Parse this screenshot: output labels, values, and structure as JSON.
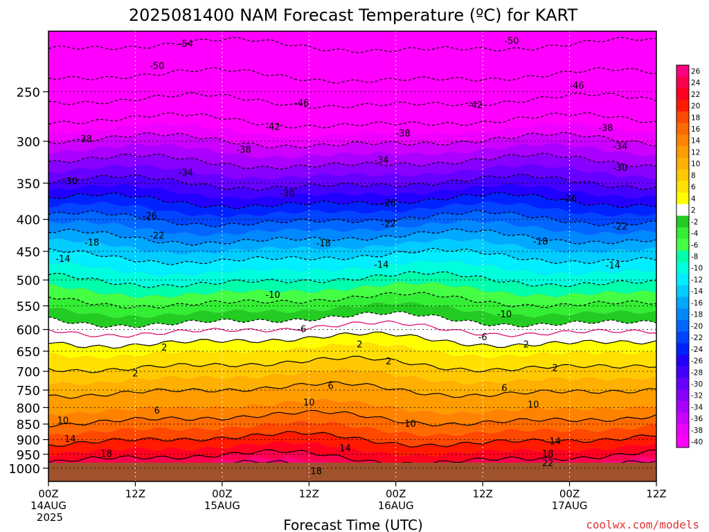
{
  "chart_data": {
    "type": "heatmap",
    "title": "2025081400 NAM Forecast Temperature (ºC) for KART",
    "xlabel": "Forecast Time (UTC)",
    "ylabel": "",
    "credit": "coolwx.com/models",
    "x_ticks": [
      {
        "hour": 0,
        "l1": "00Z",
        "l2": "14AUG",
        "l3": "2025"
      },
      {
        "hour": 12,
        "l1": "12Z",
        "l2": "",
        "l3": ""
      },
      {
        "hour": 24,
        "l1": "00Z",
        "l2": "15AUG",
        "l3": ""
      },
      {
        "hour": 36,
        "l1": "12Z",
        "l2": "",
        "l3": ""
      },
      {
        "hour": 48,
        "l1": "00Z",
        "l2": "16AUG",
        "l3": ""
      },
      {
        "hour": 60,
        "l1": "12Z",
        "l2": "",
        "l3": ""
      },
      {
        "hour": 72,
        "l1": "00Z",
        "l2": "17AUG",
        "l3": ""
      },
      {
        "hour": 84,
        "l1": "12Z",
        "l2": "",
        "l3": ""
      }
    ],
    "xlim": [
      0,
      84
    ],
    "y_ticks": [
      250,
      300,
      350,
      400,
      450,
      500,
      550,
      600,
      650,
      700,
      750,
      800,
      850,
      900,
      950,
      1000
    ],
    "ylim": [
      1050,
      200
    ],
    "y_scale": "log",
    "ground_level_hpa": 980,
    "grid": true,
    "colorbar_labels": [
      "26",
      "24",
      "22",
      "20",
      "18",
      "16",
      "14",
      "12",
      "10",
      "8",
      "6",
      "4",
      "2",
      "-2",
      "-4",
      "-6",
      "-8",
      "-10",
      "-12",
      "-14",
      "-16",
      "-18",
      "-20",
      "-22",
      "-24",
      "-26",
      "-28",
      "-30",
      "-32",
      "-34",
      "-36",
      "-38",
      "-40"
    ],
    "colorbar_colors": [
      "#ff0080",
      "#ff0050",
      "#ff0020",
      "#ff1a00",
      "#ff4800",
      "#ff6a00",
      "#ff8200",
      "#ff9c00",
      "#ffb000",
      "#ffc800",
      "#ffe000",
      "#ffff00",
      "#ffffff",
      "#22cc22",
      "#33ee33",
      "#44ff44",
      "#00ffaa",
      "#00ffdd",
      "#00eeff",
      "#00ccff",
      "#00a8ff",
      "#0088ff",
      "#0066ff",
      "#0044ff",
      "#0022ff",
      "#2200ff",
      "#4400ff",
      "#6600ff",
      "#8800ff",
      "#aa00ff",
      "#cc00ff",
      "#ee00ff",
      "#ff00ff"
    ],
    "ground_color": "#a0522d",
    "temperature_profile": [
      {
        "p": 200,
        "t": -56
      },
      {
        "p": 250,
        "t": -48
      },
      {
        "p": 300,
        "t": -38
      },
      {
        "p": 350,
        "t": -30
      },
      {
        "p": 400,
        "t": -22
      },
      {
        "p": 450,
        "t": -15
      },
      {
        "p": 500,
        "t": -10
      },
      {
        "p": 550,
        "t": -5
      },
      {
        "p": 600,
        "t": 0
      },
      {
        "p": 650,
        "t": 4
      },
      {
        "p": 700,
        "t": 7
      },
      {
        "p": 750,
        "t": 10
      },
      {
        "p": 800,
        "t": 12
      },
      {
        "p": 850,
        "t": 15
      },
      {
        "p": 900,
        "t": 18
      },
      {
        "p": 950,
        "t": 21
      },
      {
        "p": 1000,
        "t": 25
      }
    ],
    "contour_labels": [
      {
        "text": "-54",
        "hour": 19,
        "p": 209
      },
      {
        "text": "-50",
        "hour": 64,
        "p": 207
      },
      {
        "text": "-50",
        "hour": 15,
        "p": 227
      },
      {
        "text": "-46",
        "hour": 35,
        "p": 260
      },
      {
        "text": "-46",
        "hour": 73,
        "p": 244
      },
      {
        "text": "-42",
        "hour": 31,
        "p": 284
      },
      {
        "text": "-42",
        "hour": 59,
        "p": 262
      },
      {
        "text": "-38",
        "hour": 5,
        "p": 297
      },
      {
        "text": "-38",
        "hour": 27,
        "p": 309
      },
      {
        "text": "-38",
        "hour": 49,
        "p": 291
      },
      {
        "text": "-38",
        "hour": 77,
        "p": 285
      },
      {
        "text": "-34",
        "hour": 46,
        "p": 321
      },
      {
        "text": "-34",
        "hour": 79,
        "p": 305
      },
      {
        "text": "-34",
        "hour": 19,
        "p": 336
      },
      {
        "text": "-30",
        "hour": 3,
        "p": 347
      },
      {
        "text": "-30",
        "hour": 33,
        "p": 363
      },
      {
        "text": "-30",
        "hour": 79,
        "p": 330
      },
      {
        "text": "-26",
        "hour": 47,
        "p": 376
      },
      {
        "text": "-26",
        "hour": 72,
        "p": 370
      },
      {
        "text": "-26",
        "hour": 14,
        "p": 394
      },
      {
        "text": "-22",
        "hour": 47,
        "p": 406
      },
      {
        "text": "-22",
        "hour": 79,
        "p": 410
      },
      {
        "text": "-22",
        "hour": 15,
        "p": 424
      },
      {
        "text": "-18",
        "hour": 6,
        "p": 435
      },
      {
        "text": "-18",
        "hour": 38,
        "p": 436
      },
      {
        "text": "-18",
        "hour": 68,
        "p": 433
      },
      {
        "text": "-14",
        "hour": 2,
        "p": 462
      },
      {
        "text": "-14",
        "hour": 46,
        "p": 472
      },
      {
        "text": "-14",
        "hour": 78,
        "p": 473
      },
      {
        "text": "-10",
        "hour": 31,
        "p": 527
      },
      {
        "text": "-10",
        "hour": 63,
        "p": 566
      },
      {
        "text": "-6",
        "hour": 35,
        "p": 598
      },
      {
        "text": "-6",
        "hour": 60,
        "p": 616
      },
      {
        "text": "2",
        "hour": 16,
        "p": 640
      },
      {
        "text": "2",
        "hour": 43,
        "p": 633
      },
      {
        "text": "2",
        "hour": 66,
        "p": 633
      },
      {
        "text": "2",
        "hour": 47,
        "p": 674
      },
      {
        "text": "2",
        "hour": 12,
        "p": 704
      },
      {
        "text": "2",
        "hour": 70,
        "p": 690
      },
      {
        "text": "6",
        "hour": 39,
        "p": 737
      },
      {
        "text": "6",
        "hour": 63,
        "p": 743
      },
      {
        "text": "6",
        "hour": 15,
        "p": 807
      },
      {
        "text": "10",
        "hour": 36,
        "p": 784
      },
      {
        "text": "10",
        "hour": 2,
        "p": 838
      },
      {
        "text": "10",
        "hour": 50,
        "p": 848
      },
      {
        "text": "10",
        "hour": 67,
        "p": 790
      },
      {
        "text": "14",
        "hour": 3,
        "p": 896
      },
      {
        "text": "14",
        "hour": 41,
        "p": 928
      },
      {
        "text": "14",
        "hour": 70,
        "p": 905
      },
      {
        "text": "18",
        "hour": 8,
        "p": 947
      },
      {
        "text": "18",
        "hour": 37,
        "p": 1009
      },
      {
        "text": "18",
        "hour": 69,
        "p": 947
      },
      {
        "text": "22",
        "hour": 69,
        "p": 980
      }
    ]
  }
}
